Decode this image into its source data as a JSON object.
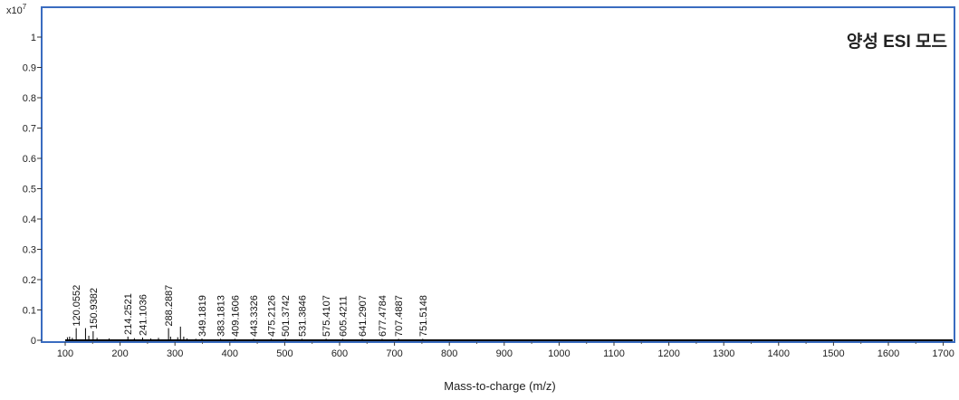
{
  "chart_data": {
    "type": "bar",
    "title": "",
    "annotation": "양성 ESI 모드",
    "xlabel": "Mass-to-charge (m/z)",
    "ylabel": "",
    "y_scale_label": "x10",
    "y_scale_exp": "7",
    "xlim": [
      60,
      1705
    ],
    "ylim": [
      0,
      1.05
    ],
    "x_ticks": [
      "100",
      "200",
      "300",
      "400",
      "500",
      "600",
      "700",
      "800",
      "900",
      "1000",
      "1100",
      "1200",
      "1300",
      "1400",
      "1500",
      "1600",
      "1700"
    ],
    "y_ticks": [
      "0",
      "0.1",
      "0.2",
      "0.3",
      "0.4",
      "0.5",
      "0.6",
      "0.7",
      "0.8",
      "0.9",
      "1"
    ],
    "frame_color": "#3a6cc0",
    "line_color": "#000000",
    "labeled_peaks": [
      {
        "mz": 120.0552,
        "intensity": 0.04
      },
      {
        "mz": 150.9382,
        "intensity": 0.03
      },
      {
        "mz": 214.2521,
        "intensity": 0.012
      },
      {
        "mz": 241.1036,
        "intensity": 0.009
      },
      {
        "mz": 288.2887,
        "intensity": 0.04
      },
      {
        "mz": 349.1819,
        "intensity": 0.006
      },
      {
        "mz": 383.1813,
        "intensity": 0.005
      },
      {
        "mz": 409.1606,
        "intensity": 0.005
      },
      {
        "mz": 443.3326,
        "intensity": 0.005
      },
      {
        "mz": 475.2126,
        "intensity": 0.005
      },
      {
        "mz": 501.3742,
        "intensity": 0.005
      },
      {
        "mz": 531.3846,
        "intensity": 0.005
      },
      {
        "mz": 575.4107,
        "intensity": 0.005
      },
      {
        "mz": 605.4211,
        "intensity": 0.005
      },
      {
        "mz": 641.2907,
        "intensity": 0.005
      },
      {
        "mz": 677.4784,
        "intensity": 0.005
      },
      {
        "mz": 707.4887,
        "intensity": 0.005
      },
      {
        "mz": 751.5148,
        "intensity": 0.005
      }
    ],
    "unlabeled_peaks": [
      {
        "mz": 104,
        "intensity": 0.01
      },
      {
        "mz": 108,
        "intensity": 0.012
      },
      {
        "mz": 113,
        "intensity": 0.008
      },
      {
        "mz": 137,
        "intensity": 0.04
      },
      {
        "mz": 143,
        "intensity": 0.015
      },
      {
        "mz": 158,
        "intensity": 0.008
      },
      {
        "mz": 180,
        "intensity": 0.006
      },
      {
        "mz": 226,
        "intensity": 0.007
      },
      {
        "mz": 256,
        "intensity": 0.006
      },
      {
        "mz": 270,
        "intensity": 0.008
      },
      {
        "mz": 292,
        "intensity": 0.012
      },
      {
        "mz": 305,
        "intensity": 0.01
      },
      {
        "mz": 310,
        "intensity": 0.045
      },
      {
        "mz": 316,
        "intensity": 0.012
      },
      {
        "mz": 322,
        "intensity": 0.006
      },
      {
        "mz": 338,
        "intensity": 0.005
      }
    ]
  }
}
